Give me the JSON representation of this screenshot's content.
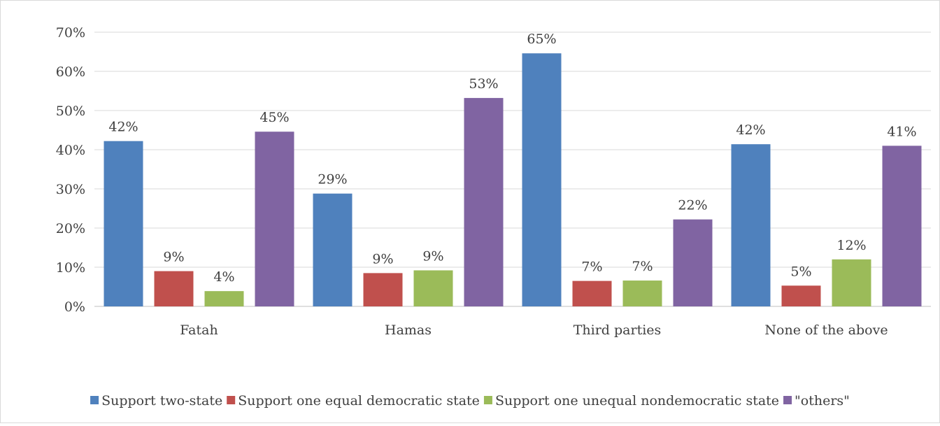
{
  "chart_data": {
    "type": "bar",
    "categories": [
      "Fatah",
      "Hamas",
      "Third parties",
      "None of the above"
    ],
    "series": [
      {
        "name": "Support two-state",
        "color": "#4f81bd",
        "values": [
          42,
          29,
          65,
          42
        ],
        "labels": [
          "42%",
          "29%",
          "65%",
          "42%"
        ],
        "plotted": [
          42.2,
          28.8,
          64.6,
          41.4
        ]
      },
      {
        "name": "Support one equal democratic state",
        "color": "#c0504d",
        "values": [
          9,
          9,
          7,
          5
        ],
        "labels": [
          "9%",
          "9%",
          "7%",
          "5%"
        ],
        "plotted": [
          9.0,
          8.5,
          6.5,
          5.3
        ]
      },
      {
        "name": "Support one unequal nondemocratic state",
        "color": "#9bbb59",
        "values": [
          4,
          9,
          7,
          12
        ],
        "labels": [
          "4%",
          "9%",
          "7%",
          "12%"
        ],
        "plotted": [
          3.9,
          9.2,
          6.6,
          12.0
        ]
      },
      {
        "name": "\"others\"",
        "color": "#8064a2",
        "values": [
          45,
          53,
          22,
          41
        ],
        "labels": [
          "45%",
          "53%",
          "22%",
          "41%"
        ],
        "plotted": [
          44.6,
          53.2,
          22.2,
          41.0
        ]
      }
    ],
    "y_ticks": [
      "0%",
      "10%",
      "20%",
      "30%",
      "40%",
      "50%",
      "60%",
      "70%"
    ],
    "ylim": [
      0,
      70
    ],
    "grid": true,
    "legend_position": "bottom"
  }
}
